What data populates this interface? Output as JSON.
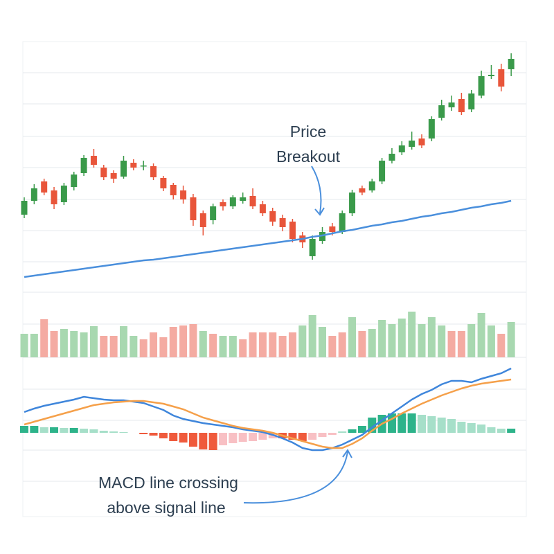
{
  "chart_data": [
    {
      "type": "candlestick",
      "ylim": [
        0,
        350
      ],
      "up_color": "#3a9a4a",
      "down_color": "#e8553a",
      "open": [
        100,
        120,
        148,
        135,
        118,
        140,
        160,
        185,
        168,
        160,
        155,
        175,
        170,
        170,
        153,
        143,
        135,
        125,
        102,
        92,
        118,
        112,
        120,
        127,
        115,
        105,
        95,
        90,
        70,
        40,
        62,
        83,
        75,
        102,
        138,
        135,
        148,
        178,
        190,
        198,
        210,
        210,
        240,
        255,
        267,
        252,
        272,
        300,
        310,
        310
      ],
      "high": [
        125,
        144,
        152,
        140,
        146,
        162,
        186,
        195,
        172,
        164,
        185,
        180,
        178,
        174,
        156,
        146,
        142,
        130,
        106,
        116,
        122,
        128,
        132,
        138,
        120,
        110,
        100,
        94,
        75,
        70,
        82,
        88,
        106,
        136,
        142,
        152,
        182,
        196,
        206,
        220,
        216,
        242,
        266,
        272,
        276,
        280,
        308,
        316,
        318,
        333
      ],
      "low": [
        95,
        115,
        128,
        108,
        114,
        135,
        156,
        168,
        150,
        146,
        152,
        164,
        164,
        150,
        134,
        122,
        116,
        84,
        70,
        86,
        106,
        108,
        116,
        108,
        98,
        84,
        76,
        60,
        52,
        35,
        58,
        70,
        72,
        98,
        128,
        132,
        144,
        174,
        186,
        194,
        196,
        206,
        236,
        250,
        244,
        248,
        268,
        296,
        278,
        300
      ],
      "close": [
        120,
        138,
        132,
        115,
        142,
        158,
        182,
        172,
        154,
        152,
        178,
        168,
        171,
        154,
        138,
        128,
        122,
        92,
        82,
        112,
        112,
        125,
        125,
        112,
        102,
        90,
        82,
        65,
        60,
        65,
        75,
        75,
        102,
        132,
        132,
        148,
        178,
        188,
        200,
        207,
        200,
        238,
        258,
        262,
        248,
        275,
        300,
        302,
        285,
        325
      ],
      "ma": {
        "color": "#4a8fdc",
        "values": [
          10,
          12,
          14,
          16,
          18,
          20,
          22,
          24,
          26,
          28,
          30,
          32,
          34,
          35,
          37,
          39,
          41,
          43,
          45,
          47,
          49,
          51,
          53,
          55,
          57,
          59,
          61,
          63,
          65,
          68,
          70,
          73,
          76,
          78,
          81,
          84,
          86,
          89,
          91,
          94,
          97,
          99,
          102,
          104,
          107,
          110,
          112,
          115,
          117,
          120
        ]
      },
      "annotation": {
        "lines": [
          "Price",
          "Breakout"
        ]
      }
    },
    {
      "type": "bar",
      "ylim": [
        0,
        76
      ],
      "values": [
        34,
        34,
        55,
        38,
        41,
        38,
        36,
        45,
        31,
        31,
        45,
        31,
        26,
        36,
        29,
        44,
        46,
        48,
        38,
        34,
        31,
        31,
        26,
        36,
        36,
        36,
        31,
        36,
        46,
        61,
        44,
        31,
        36,
        58,
        38,
        41,
        54,
        48,
        56,
        66,
        48,
        58,
        46,
        38,
        38,
        48,
        64,
        46,
        34,
        51
      ],
      "colors": [
        "#a8d8b0",
        "#a8d8b0",
        "#f4aba2",
        "#f4aba2",
        "#a8d8b0",
        "#a8d8b0",
        "#a8d8b0",
        "#a8d8b0",
        "#f4aba2",
        "#f4aba2",
        "#a8d8b0",
        "#a8d8b0",
        "#f4aba2",
        "#f4aba2",
        "#f4aba2",
        "#f4aba2",
        "#f4aba2",
        "#f4aba2",
        "#a8d8b0",
        "#f4aba2",
        "#a8d8b0",
        "#a8d8b0",
        "#f4aba2",
        "#f4aba2",
        "#f4aba2",
        "#f4aba2",
        "#f4aba2",
        "#f4aba2",
        "#a8d8b0",
        "#a8d8b0",
        "#a8d8b0",
        "#f4aba2",
        "#f4aba2",
        "#a8d8b0",
        "#f4aba2",
        "#a8d8b0",
        "#a8d8b0",
        "#a8d8b0",
        "#a8d8b0",
        "#a8d8b0",
        "#a8d8b0",
        "#a8d8b0",
        "#a8d8b0",
        "#f4aba2",
        "#f4aba2",
        "#a8d8b0",
        "#a8d8b0",
        "#a8d8b0",
        "#f4aba2",
        "#a8d8b0"
      ]
    },
    {
      "type": "macd",
      "ylim": [
        -120,
        90
      ],
      "histogram": {
        "pos_colors": [
          "#2db38a",
          "#a6dfc9"
        ],
        "neg_colors": [
          "#ef5a3c",
          "#f8c0c4"
        ],
        "values": [
          10,
          10,
          8,
          8,
          7,
          7,
          6,
          5,
          3,
          2,
          1,
          0,
          -2,
          -4,
          -8,
          -12,
          -14,
          -20,
          -24,
          -25,
          -18,
          -15,
          -13,
          -12,
          -10,
          -8,
          -8,
          -10,
          -12,
          -10,
          -6,
          -3,
          2,
          5,
          10,
          22,
          26,
          28,
          28,
          28,
          26,
          24,
          22,
          20,
          16,
          14,
          12,
          8,
          6,
          6
        ]
      },
      "series": [
        {
          "color": "#3f86db",
          "values": [
            30,
            35,
            39,
            42,
            45,
            48,
            52,
            50,
            48,
            47,
            47,
            45,
            43,
            38,
            33,
            25,
            20,
            17,
            14,
            12,
            10,
            8,
            5,
            3,
            1,
            -3,
            -8,
            -14,
            -22,
            -25,
            -25,
            -22,
            -17,
            -10,
            -3,
            8,
            18,
            28,
            38,
            48,
            56,
            62,
            70,
            75,
            75,
            73,
            78,
            82,
            86,
            93
          ]
        },
        {
          "color": "#f5a04a",
          "values": [
            12,
            16,
            20,
            24,
            28,
            32,
            36,
            40,
            42,
            44,
            45,
            46,
            46,
            44,
            42,
            38,
            34,
            28,
            22,
            18,
            14,
            10,
            7,
            5,
            3,
            0,
            -4,
            -8,
            -12,
            -16,
            -20,
            -22,
            -22,
            -16,
            -8,
            3,
            13,
            20,
            28,
            35,
            42,
            48,
            54,
            59,
            64,
            68,
            71,
            73,
            75,
            77
          ]
        }
      ],
      "annotation": {
        "lines": [
          "MACD line crossing",
          "above signal line"
        ]
      }
    }
  ]
}
